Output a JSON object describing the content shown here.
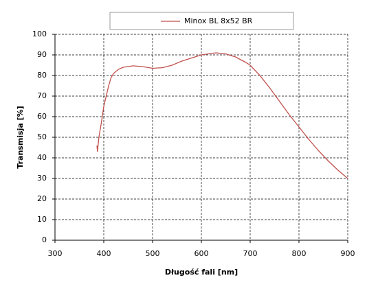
{
  "chart_data": {
    "type": "line",
    "x_label": "Długość fali [nm]",
    "y_label": "Transmisja [%]",
    "x": [
      386,
      387,
      390,
      395,
      400,
      405,
      410,
      415,
      420,
      430,
      440,
      460,
      480,
      500,
      520,
      540,
      560,
      580,
      600,
      620,
      630,
      650,
      670,
      690,
      700,
      720,
      740,
      760,
      780,
      800,
      820,
      840,
      860,
      880,
      900
    ],
    "series": [
      {
        "name": "Minox BL 8x52 BR",
        "color": "#c0504d",
        "values": [
          46,
          43,
          50,
          57,
          65,
          70,
          75,
          79,
          81,
          83,
          84,
          84.7,
          84.3,
          83.5,
          83.8,
          85,
          87,
          88.5,
          90,
          90.7,
          91,
          90.5,
          89,
          86.5,
          85,
          80,
          74,
          67.5,
          61,
          55,
          49,
          43.5,
          38.5,
          34,
          30
        ]
      }
    ],
    "xlim": [
      300,
      900
    ],
    "xticks": [
      300,
      400,
      500,
      600,
      700,
      800,
      900
    ],
    "ylim": [
      0,
      100
    ],
    "yticks": [
      0,
      10,
      20,
      30,
      40,
      50,
      60,
      70,
      80,
      90,
      100
    ],
    "grid": true,
    "legend": "top"
  }
}
